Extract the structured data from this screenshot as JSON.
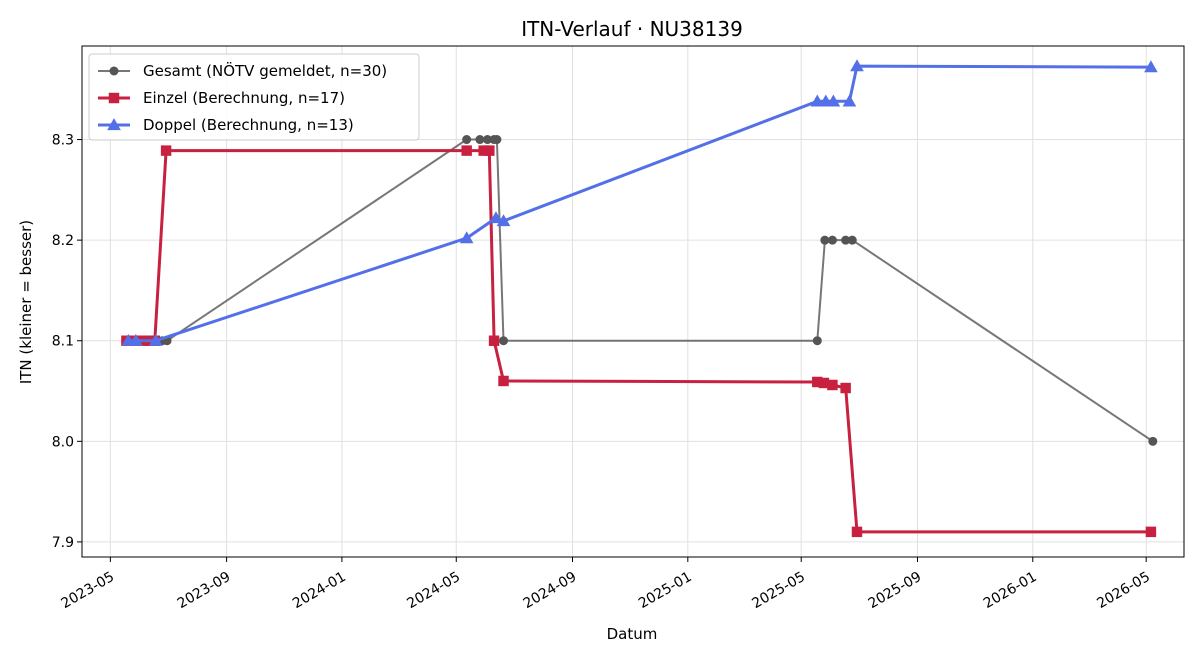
{
  "chart_data": {
    "type": "line",
    "title": "ITN-Verlauf · NU38139",
    "xlabel": "Datum",
    "ylabel": "ITN  (kleiner = besser)",
    "x_type": "date",
    "xlim": [
      "2023-04-01",
      "2026-06-10"
    ],
    "ylim": [
      7.885,
      8.393
    ],
    "x_ticks": [
      "2023-05-01",
      "2023-09-01",
      "2024-01-01",
      "2024-05-01",
      "2024-09-01",
      "2025-01-01",
      "2025-05-01",
      "2025-09-01",
      "2026-01-01",
      "2026-05-01"
    ],
    "x_tick_labels": [
      "2023-05",
      "2023-09",
      "2024-01",
      "2024-05",
      "2024-09",
      "2025-01",
      "2025-05",
      "2025-09",
      "2026-01",
      "2026-05"
    ],
    "y_ticks": [
      7.9,
      8.0,
      8.1,
      8.2,
      8.3
    ],
    "y_tick_labels": [
      "7.9",
      "8.0",
      "8.1",
      "8.2",
      "8.3"
    ],
    "grid": true,
    "legend_position": "top-left",
    "series": [
      {
        "name": "Gesamt (NÖTV gemeldet, n=30)",
        "color": "#555555",
        "marker": "circle",
        "points": [
          [
            "2023-05-18",
            8.1
          ],
          [
            "2023-05-22",
            8.1
          ],
          [
            "2023-05-26",
            8.1
          ],
          [
            "2023-06-01",
            8.1
          ],
          [
            "2023-06-05",
            8.1
          ],
          [
            "2023-06-10",
            8.1
          ],
          [
            "2023-06-15",
            8.1
          ],
          [
            "2023-06-20",
            8.1
          ],
          [
            "2023-06-25",
            8.1
          ],
          [
            "2023-06-30",
            8.1
          ],
          [
            "2024-05-12",
            8.3
          ],
          [
            "2024-05-26",
            8.3
          ],
          [
            "2024-06-03",
            8.3
          ],
          [
            "2024-06-10",
            8.3
          ],
          [
            "2024-06-13",
            8.3
          ],
          [
            "2024-06-20",
            8.1
          ],
          [
            "2025-05-18",
            8.1
          ],
          [
            "2025-05-26",
            8.2
          ],
          [
            "2025-06-03",
            8.2
          ],
          [
            "2025-06-17",
            8.2
          ],
          [
            "2025-06-24",
            8.2
          ],
          [
            "2026-05-08",
            8.0
          ]
        ]
      },
      {
        "name": "Einzel (Berechnung, n=17)",
        "color": "#c8203f",
        "marker": "square",
        "points": [
          [
            "2023-05-18",
            8.1
          ],
          [
            "2023-05-28",
            8.1
          ],
          [
            "2023-06-05",
            8.1
          ],
          [
            "2023-06-12",
            8.1
          ],
          [
            "2023-06-17",
            8.1
          ],
          [
            "2023-06-29",
            8.289
          ],
          [
            "2024-05-12",
            8.289
          ],
          [
            "2024-05-30",
            8.289
          ],
          [
            "2024-06-05",
            8.289
          ],
          [
            "2024-06-10",
            8.1
          ],
          [
            "2024-06-20",
            8.06
          ],
          [
            "2025-05-18",
            8.059
          ],
          [
            "2025-05-25",
            8.058
          ],
          [
            "2025-06-03",
            8.056
          ],
          [
            "2025-06-17",
            8.053
          ],
          [
            "2025-06-29",
            7.91
          ],
          [
            "2026-05-06",
            7.91
          ]
        ]
      },
      {
        "name": "Doppel (Berechnung, n=13)",
        "color": "#5470e8",
        "marker": "triangle",
        "points": [
          [
            "2023-05-20",
            8.1
          ],
          [
            "2023-05-28",
            8.1
          ],
          [
            "2023-06-18",
            8.1
          ],
          [
            "2024-05-12",
            8.202
          ],
          [
            "2024-06-12",
            8.222
          ],
          [
            "2024-06-20",
            8.219
          ],
          [
            "2025-05-18",
            8.338
          ],
          [
            "2025-05-27",
            8.338
          ],
          [
            "2025-06-04",
            8.338
          ],
          [
            "2025-06-21",
            8.338
          ],
          [
            "2025-06-29",
            8.373
          ],
          [
            "2026-05-06",
            8.372
          ]
        ]
      }
    ]
  }
}
